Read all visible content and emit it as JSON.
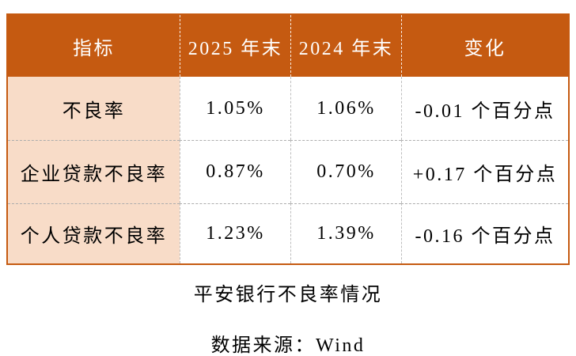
{
  "chart_data": {
    "type": "table",
    "title": "平安银行不良率情况",
    "source": "数据来源：Wind",
    "columns": [
      "指标",
      "2025 年末",
      "2024 年末",
      "变化"
    ],
    "rows": [
      [
        "不良率",
        "1.05%",
        "1.06%",
        "-0.01 个百分点"
      ],
      [
        "企业贷款不良率",
        "0.87%",
        "0.70%",
        "+0.17 个百分点"
      ],
      [
        "个人贷款不良率",
        "1.23%",
        "1.39%",
        "-0.16 个百分点"
      ]
    ]
  },
  "colors": {
    "header_bg": "#C55A11",
    "header_text": "#FFFFFF",
    "first_column_bg": "#F8DCC8",
    "outer_border": "#C55A11",
    "inner_divider_dashed": "#ADADAD",
    "body_text": "#000000"
  }
}
